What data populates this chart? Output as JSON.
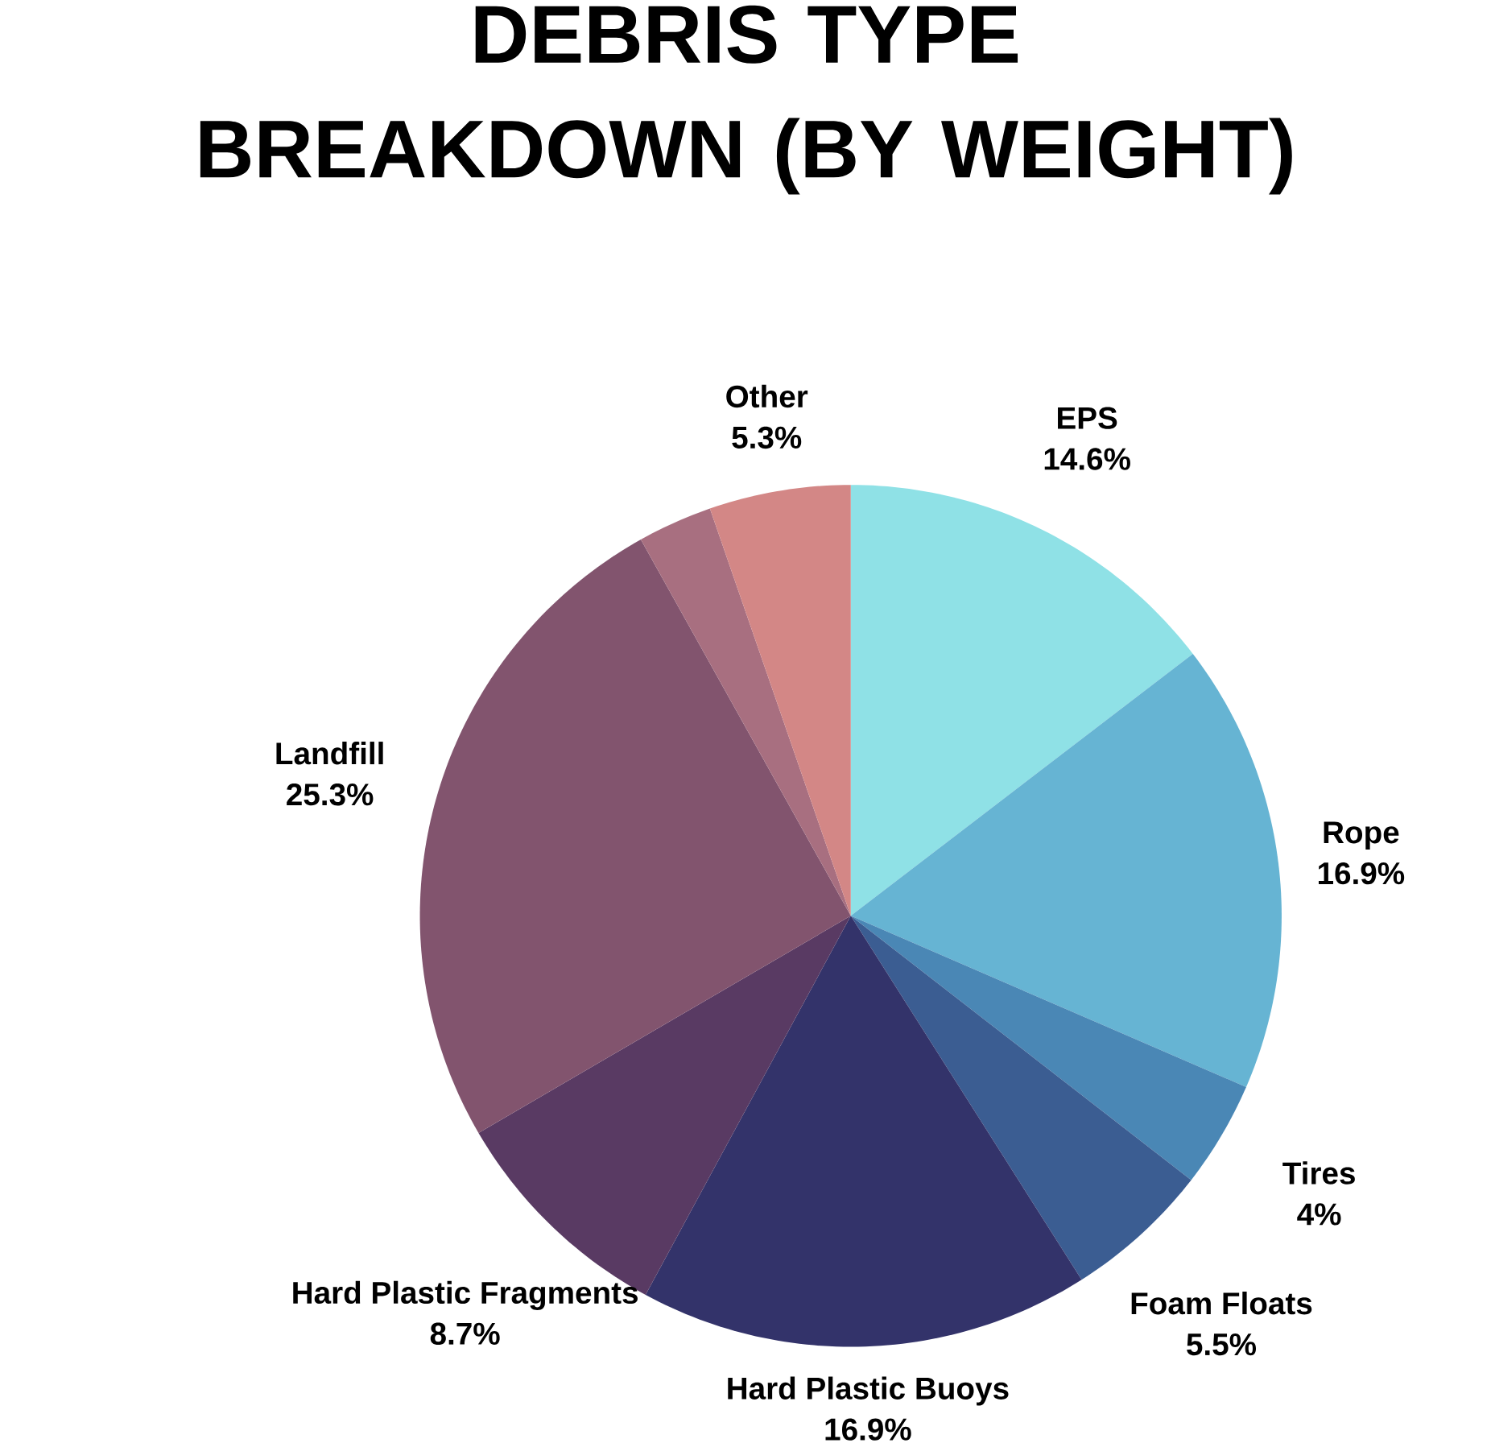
{
  "chart_data": {
    "type": "pie",
    "title": "DEBRIS TYPE BREAKDOWN (BY WEIGHT)",
    "categories": [
      "EPS",
      "Rope",
      "Tires",
      "Foam Floats",
      "Hard Plastic Buoys",
      "Hard Plastic Fragments",
      "Landfill",
      null,
      "Other"
    ],
    "values": [
      14.6,
      16.9,
      4,
      5.5,
      16.9,
      8.7,
      25.3,
      2.8,
      5.3
    ],
    "value_labels": [
      "14.6%",
      "16.9%",
      "4%",
      "5.5%",
      "16.9%",
      "8.7%",
      "25.3%",
      null,
      "5.3%"
    ],
    "colors": [
      "#8fe1e6",
      "#66b4d3",
      "#4a87b5",
      "#3b5d92",
      "#33336a",
      "#593a63",
      "#82546e",
      "#a86f80",
      "#d38786"
    ]
  }
}
